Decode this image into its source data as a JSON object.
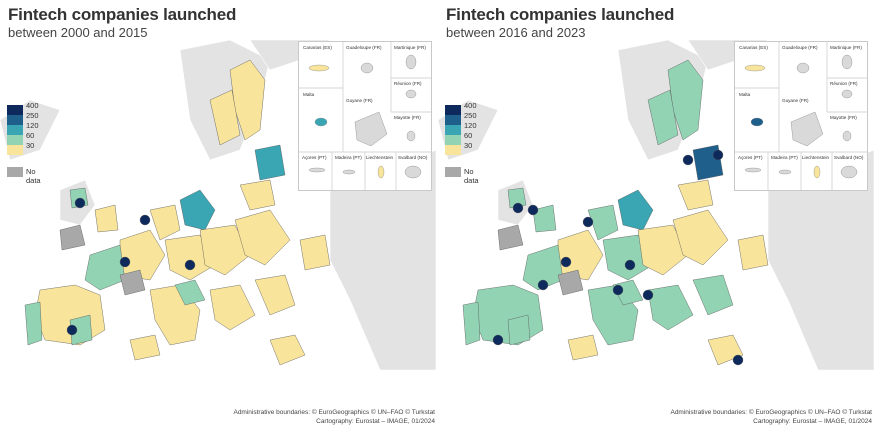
{
  "legend": {
    "classes": [
      {
        "label": "400",
        "color": "#0e2a5c"
      },
      {
        "label": "250",
        "color": "#1f5f8c"
      },
      {
        "label": "120",
        "color": "#3aa6b3"
      },
      {
        "label": "60",
        "color": "#92d3b4"
      },
      {
        "label": "30",
        "color": "#f8e49a"
      }
    ],
    "nodata": {
      "label": "No data",
      "color": "#a8a8a8"
    }
  },
  "inset_labels": [
    "Canarias (ES)",
    "Guadeloupe (FR)",
    "Martinique (FR)",
    "Réunion (FR)",
    "Malta",
    "Guyane (FR)",
    "Mayotte (FR)",
    "Açores (PT)",
    "Madeira (PT)",
    "Liechtenstein",
    "Svalbard (NO)"
  ],
  "panels": [
    {
      "title": "Fintech companies launched",
      "subtitle": "between 2000 and 2015"
    },
    {
      "title": "Fintech companies launched",
      "subtitle": "between 2016 and 2023"
    }
  ],
  "credits": {
    "line1": "Administrative boundaries: © EuroGeographics © UN–FAO © Turkstat",
    "line2": "Cartography: Eurostat – IMAGE, 01/2024"
  }
}
